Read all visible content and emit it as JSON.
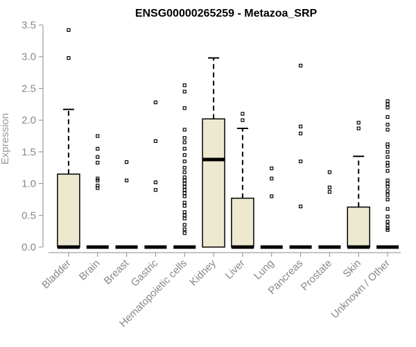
{
  "chart_data": {
    "type": "boxplot",
    "title": "ENSG00000265259 - Metazoa_SRP",
    "ylabel": "Expression",
    "xlabel": "",
    "ylim": [
      0,
      3.5
    ],
    "yticks": [
      "0.0",
      "0.5",
      "1.0",
      "1.5",
      "2.0",
      "2.5",
      "3.0",
      "3.5"
    ],
    "box_fill": "#ede8d0",
    "box_stroke": "#000000",
    "categories": [
      "Bladder",
      "Brain",
      "Breast",
      "Gastric",
      "Hematopoietic cells",
      "Kidney",
      "Liver",
      "Lung",
      "Pancreas",
      "Prostate",
      "Skin",
      "Unknown / Other"
    ],
    "boxes": [
      {
        "q1": 0,
        "median": 0,
        "q3": 1.15,
        "whisker_low": 0,
        "whisker_high": 2.17,
        "outliers": [
          2.98,
          3.42
        ]
      },
      {
        "q1": 0,
        "median": 0,
        "q3": 0,
        "whisker_low": 0,
        "whisker_high": 0,
        "outliers": [
          0.93,
          0.97,
          1.05,
          1.08,
          1.33,
          1.42,
          1.55,
          1.75
        ]
      },
      {
        "q1": 0,
        "median": 0,
        "q3": 0,
        "whisker_low": 0,
        "whisker_high": 0,
        "outliers": [
          1.05,
          1.34
        ]
      },
      {
        "q1": 0,
        "median": 0,
        "q3": 0,
        "whisker_low": 0,
        "whisker_high": 0,
        "outliers": [
          0.9,
          1.02,
          1.67,
          2.28
        ]
      },
      {
        "q1": 0,
        "median": 0,
        "q3": 0,
        "whisker_low": 0,
        "whisker_high": 0,
        "outliers": [
          0.22,
          0.28,
          0.35,
          0.45,
          0.5,
          0.55,
          0.65,
          0.7,
          0.8,
          0.85,
          0.9,
          0.95,
          1.0,
          1.05,
          1.1,
          1.18,
          1.25,
          1.35,
          1.45,
          1.55,
          1.65,
          1.72,
          1.85,
          2.19,
          2.45,
          2.55
        ]
      },
      {
        "q1": 0,
        "median": 1.38,
        "q3": 2.02,
        "whisker_low": 0,
        "whisker_high": 2.98,
        "outliers": []
      },
      {
        "q1": 0,
        "median": 0,
        "q3": 0.77,
        "whisker_low": 0,
        "whisker_high": 1.87,
        "outliers": [
          2.0,
          2.1
        ]
      },
      {
        "q1": 0,
        "median": 0,
        "q3": 0,
        "whisker_low": 0,
        "whisker_high": 0,
        "outliers": [
          0.8,
          1.08,
          1.24
        ]
      },
      {
        "q1": 0,
        "median": 0,
        "q3": 0,
        "whisker_low": 0,
        "whisker_high": 0,
        "outliers": [
          0.64,
          1.35,
          1.79,
          1.9,
          2.86
        ]
      },
      {
        "q1": 0,
        "median": 0,
        "q3": 0,
        "whisker_low": 0,
        "whisker_high": 0,
        "outliers": [
          0.87,
          0.94,
          1.18
        ]
      },
      {
        "q1": 0,
        "median": 0,
        "q3": 0.63,
        "whisker_low": 0,
        "whisker_high": 1.43,
        "outliers": [
          1.87,
          1.96
        ]
      },
      {
        "q1": 0,
        "median": 0,
        "q3": 0,
        "whisker_low": 0,
        "whisker_high": 0,
        "outliers": [
          0.27,
          0.3,
          0.34,
          0.4,
          0.48,
          0.6,
          0.75,
          0.82,
          0.88,
          0.95,
          1.0,
          1.05,
          1.2,
          1.28,
          1.33,
          1.42,
          1.5,
          1.58,
          1.62,
          1.85,
          1.93,
          2.05,
          2.2,
          2.25,
          2.3
        ]
      }
    ]
  }
}
